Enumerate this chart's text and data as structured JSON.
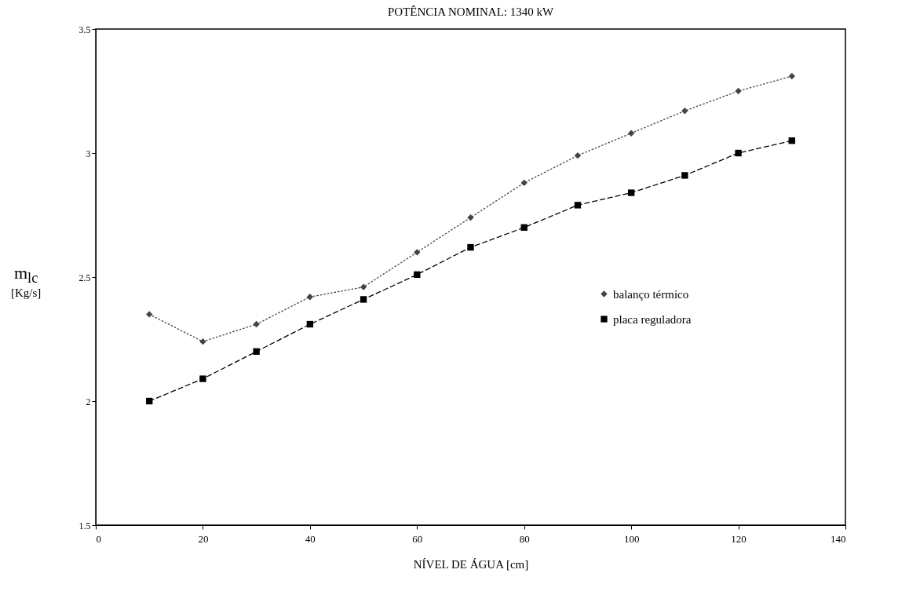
{
  "chart_data": {
    "type": "line",
    "title": "POTÊNCIA NOMINAL: 1340 kW",
    "xlabel": "NÍVEL DE ÁGUA  [cm]",
    "ylabel": "m$_{lc}$ [Kg/s]",
    "x": [
      10,
      20,
      30,
      40,
      50,
      60,
      70,
      80,
      90,
      100,
      110,
      120,
      130
    ],
    "series": [
      {
        "name": "balanço térmico",
        "color": "#444444",
        "marker": "diamond",
        "line_style": "dotted",
        "values": [
          2.35,
          2.24,
          2.31,
          2.42,
          2.46,
          2.6,
          2.74,
          2.88,
          2.99,
          3.08,
          3.17,
          3.25,
          3.31
        ]
      },
      {
        "name": "placa reguladora",
        "color": "#000000",
        "marker": "square",
        "line_style": "dashed",
        "values": [
          2.0,
          2.09,
          2.2,
          2.31,
          2.41,
          2.51,
          2.62,
          2.7,
          2.79,
          2.84,
          2.91,
          3.0,
          3.05
        ]
      }
    ],
    "xlim": [
      0,
      140
    ],
    "xticks": [
      0,
      20,
      40,
      60,
      80,
      100,
      120,
      140
    ],
    "ylim": [
      1.5,
      3.5
    ],
    "yticks": [
      1.5,
      2,
      2.5,
      3,
      3.5
    ],
    "grid": false,
    "legend": "right"
  }
}
